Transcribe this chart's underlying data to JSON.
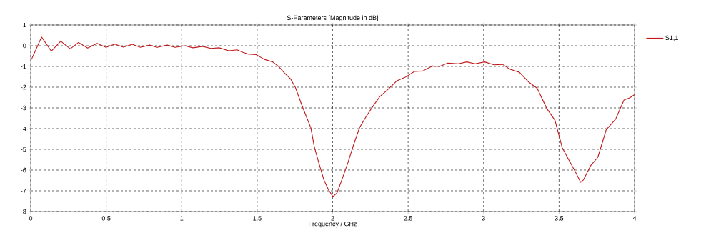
{
  "chart_data": {
    "type": "line",
    "title": "S-Parameters [Magnitude in dB]",
    "xlabel": "Frequency / GHz",
    "xlim": [
      0,
      4
    ],
    "ylim": [
      -8,
      1
    ],
    "xticks": [
      0,
      0.5,
      1,
      1.5,
      2,
      2.5,
      3,
      3.5,
      4
    ],
    "yticks": [
      -8,
      -7,
      -6,
      -5,
      -4,
      -3,
      -2,
      -1,
      0,
      1
    ],
    "grid": true,
    "legend": "top right",
    "marker": "none",
    "line_style": "solid",
    "series": [
      {
        "name": "S1,1",
        "color": "#c01818",
        "x": [
          0.005,
          0.072,
          0.136,
          0.199,
          0.262,
          0.317,
          0.377,
          0.44,
          0.499,
          0.557,
          0.614,
          0.672,
          0.727,
          0.787,
          0.838,
          0.904,
          0.956,
          1.019,
          1.075,
          1.138,
          1.193,
          1.248,
          1.311,
          1.367,
          1.406,
          1.437,
          1.493,
          1.548,
          1.603,
          1.643,
          1.682,
          1.722,
          1.753,
          1.793,
          1.824,
          1.856,
          1.879,
          1.911,
          1.942,
          1.971,
          2.002,
          2.029,
          2.061,
          2.1,
          2.14,
          2.179,
          2.226,
          2.274,
          2.313,
          2.368,
          2.424,
          2.479,
          2.542,
          2.597,
          2.66,
          2.708,
          2.763,
          2.834,
          2.889,
          2.944,
          3.007,
          3.07,
          3.126,
          3.173,
          3.237,
          3.3,
          3.355,
          3.418,
          3.473,
          3.521,
          3.568,
          3.607,
          3.643,
          3.662,
          3.71,
          3.757,
          3.812,
          3.875,
          3.93,
          3.97,
          4.0
        ],
        "values": [
          -0.66,
          0.42,
          -0.26,
          0.22,
          -0.15,
          0.16,
          -0.11,
          0.11,
          -0.08,
          0.08,
          -0.07,
          0.07,
          -0.08,
          0.03,
          -0.08,
          0.03,
          -0.08,
          0.0,
          -0.1,
          -0.03,
          -0.13,
          -0.1,
          -0.24,
          -0.2,
          -0.32,
          -0.4,
          -0.43,
          -0.66,
          -0.78,
          -1.01,
          -1.32,
          -1.61,
          -2.01,
          -2.81,
          -3.39,
          -3.97,
          -4.89,
          -5.72,
          -6.47,
          -6.93,
          -7.28,
          -7.1,
          -6.47,
          -5.67,
          -4.75,
          -3.94,
          -3.37,
          -2.85,
          -2.45,
          -2.1,
          -1.7,
          -1.53,
          -1.24,
          -1.22,
          -0.98,
          -1.0,
          -0.84,
          -0.87,
          -0.78,
          -0.87,
          -0.78,
          -0.92,
          -0.9,
          -1.13,
          -1.28,
          -1.76,
          -2.05,
          -3.02,
          -3.6,
          -4.92,
          -5.55,
          -6.07,
          -6.59,
          -6.47,
          -5.78,
          -5.38,
          -4.06,
          -3.54,
          -2.62,
          -2.51,
          -2.36
        ]
      }
    ]
  }
}
